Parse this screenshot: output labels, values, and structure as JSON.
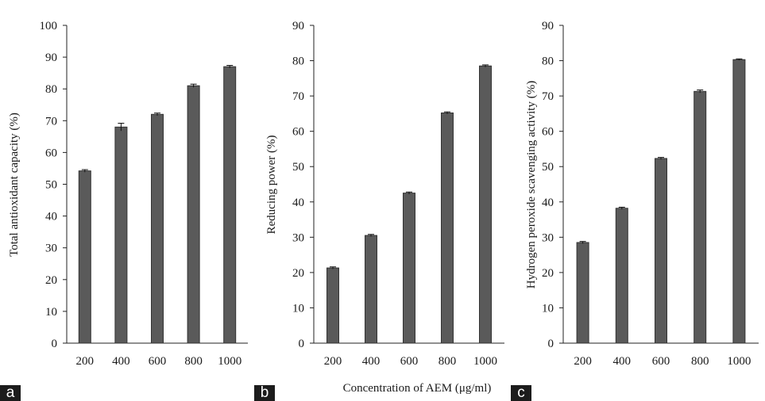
{
  "chart_data": [
    {
      "type": "bar",
      "panel_label": "a",
      "categories": [
        "200",
        "400",
        "600",
        "800",
        "1000"
      ],
      "values": [
        54.2,
        68.0,
        72.0,
        81.0,
        87.0
      ],
      "errors": [
        0.4,
        1.2,
        0.4,
        0.5,
        0.4
      ],
      "ylabel": "Total antioxidant capacity (%)",
      "xlabel": "",
      "ylim": [
        0,
        100
      ],
      "yticks": [
        0,
        10,
        20,
        30,
        40,
        50,
        60,
        70,
        80,
        90,
        100
      ],
      "bar_color": "#5a5a5a",
      "grid": false,
      "legend": "none"
    },
    {
      "type": "bar",
      "panel_label": "b",
      "categories": [
        "200",
        "400",
        "600",
        "800",
        "1000"
      ],
      "values": [
        21.3,
        30.5,
        42.5,
        65.2,
        78.5
      ],
      "errors": [
        0.3,
        0.3,
        0.3,
        0.3,
        0.3
      ],
      "ylabel": "Reducing power (%)",
      "xlabel": "Concentration of AEM (μg/ml)",
      "ylim": [
        0,
        90
      ],
      "yticks": [
        0,
        10,
        20,
        30,
        40,
        50,
        60,
        70,
        80,
        90
      ],
      "bar_color": "#5a5a5a",
      "grid": false,
      "legend": "none"
    },
    {
      "type": "bar",
      "panel_label": "c",
      "categories": [
        "200",
        "400",
        "600",
        "800",
        "1000"
      ],
      "values": [
        28.5,
        38.2,
        52.3,
        71.3,
        80.3
      ],
      "errors": [
        0.3,
        0.3,
        0.3,
        0.4,
        0.2
      ],
      "ylabel": "Hydrogen peroxide scavenging activity (%)",
      "xlabel": "",
      "ylim": [
        0,
        90
      ],
      "yticks": [
        0,
        10,
        20,
        30,
        40,
        50,
        60,
        70,
        80,
        90
      ],
      "bar_color": "#5a5a5a",
      "grid": false,
      "legend": "none"
    }
  ]
}
